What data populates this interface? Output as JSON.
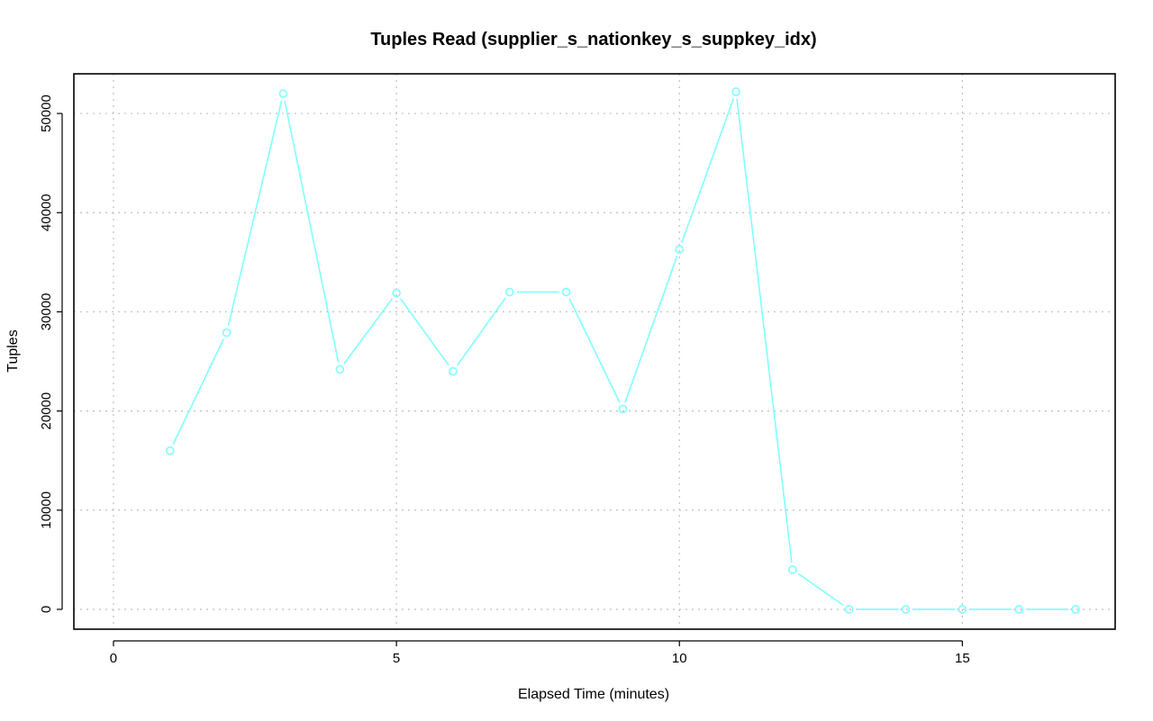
{
  "chart_data": {
    "type": "line",
    "title": "Tuples Read (supplier_s_nationkey_s_suppkey_idx)",
    "xlabel": "Elapsed Time (minutes)",
    "ylabel": "Tuples",
    "xlim": [
      -0.7,
      17.7
    ],
    "ylim": [
      -2000,
      54000
    ],
    "xticks": [
      0,
      5,
      10,
      15
    ],
    "yticks": [
      0,
      10000,
      20000,
      30000,
      40000,
      50000
    ],
    "grid": true,
    "series": [
      {
        "color": "#7fffff",
        "marker": "circle",
        "x": [
          1,
          2,
          3,
          4,
          5,
          6,
          7,
          8,
          9,
          10,
          11,
          12,
          13,
          14,
          15,
          16,
          17
        ],
        "y": [
          16000,
          27900,
          52000,
          24200,
          31900,
          24000,
          32000,
          32000,
          20200,
          36300,
          52200,
          4000,
          0,
          0,
          0,
          0,
          0
        ]
      }
    ]
  }
}
